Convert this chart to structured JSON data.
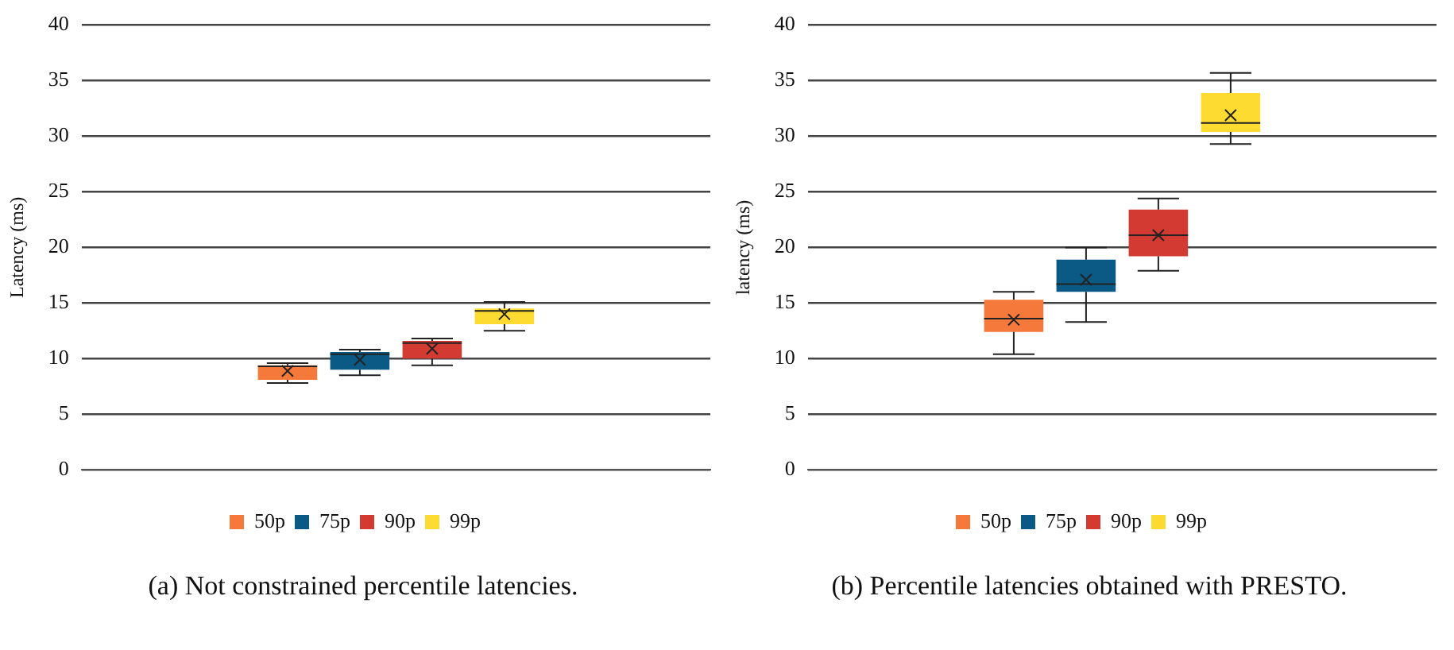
{
  "chart_data": [
    {
      "type": "box",
      "ylabel": "Latency (ms)",
      "categories": [
        null
      ],
      "ylim": [
        0,
        40
      ],
      "yticks": [
        0,
        5,
        10,
        15,
        20,
        25,
        30,
        35,
        40
      ],
      "grid": "y",
      "legend": "bottom",
      "marker": "cross",
      "annotations": [
        "(a)  Not constrained percentile latencies."
      ],
      "series": [
        {
          "name": "50p",
          "color": "#f4793a",
          "boxes": [
            {
              "low": 7.8,
              "q1": 8.1,
              "median": 9.3,
              "q3": 9.4,
              "high": 9.6,
              "mean": 8.9
            }
          ]
        },
        {
          "name": "75p",
          "color": "#0b5a86",
          "boxes": [
            {
              "low": 8.5,
              "q1": 9.0,
              "median": 10.4,
              "q3": 10.6,
              "high": 10.8,
              "mean": 9.9
            }
          ]
        },
        {
          "name": "90p",
          "color": "#d33b32",
          "boxes": [
            {
              "low": 9.4,
              "q1": 10.0,
              "median": 11.4,
              "q3": 11.6,
              "high": 11.8,
              "mean": 10.9
            }
          ]
        },
        {
          "name": "99p",
          "color": "#fddb30",
          "boxes": [
            {
              "low": 12.5,
              "q1": 13.1,
              "median": 14.3,
              "q3": 14.5,
              "high": 15.1,
              "mean": 14.0
            }
          ]
        }
      ]
    },
    {
      "type": "box",
      "ylabel": "latency (ms)",
      "categories": [
        null
      ],
      "ylim": [
        0,
        40
      ],
      "yticks": [
        0,
        5,
        10,
        15,
        20,
        25,
        30,
        35,
        40
      ],
      "grid": "y",
      "legend": "bottom",
      "marker": "cross",
      "annotations": [
        "(b)  Percentile latencies obtained with PRESTO."
      ],
      "series": [
        {
          "name": "50p",
          "color": "#f4793a",
          "boxes": [
            {
              "low": 10.4,
              "q1": 12.4,
              "median": 13.6,
              "q3": 15.3,
              "high": 16.0,
              "mean": 13.5
            }
          ]
        },
        {
          "name": "75p",
          "color": "#0b5a86",
          "boxes": [
            {
              "low": 13.3,
              "q1": 16.0,
              "median": 16.7,
              "q3": 18.9,
              "high": 20.0,
              "mean": 17.1
            }
          ]
        },
        {
          "name": "90p",
          "color": "#d33b32",
          "boxes": [
            {
              "low": 17.9,
              "q1": 19.2,
              "median": 21.1,
              "q3": 23.4,
              "high": 24.4,
              "mean": 21.1
            }
          ]
        },
        {
          "name": "99p",
          "color": "#fddb30",
          "boxes": [
            {
              "low": 29.3,
              "q1": 30.4,
              "median": 31.2,
              "q3": 33.9,
              "high": 35.7,
              "mean": 31.9
            }
          ]
        }
      ]
    }
  ]
}
